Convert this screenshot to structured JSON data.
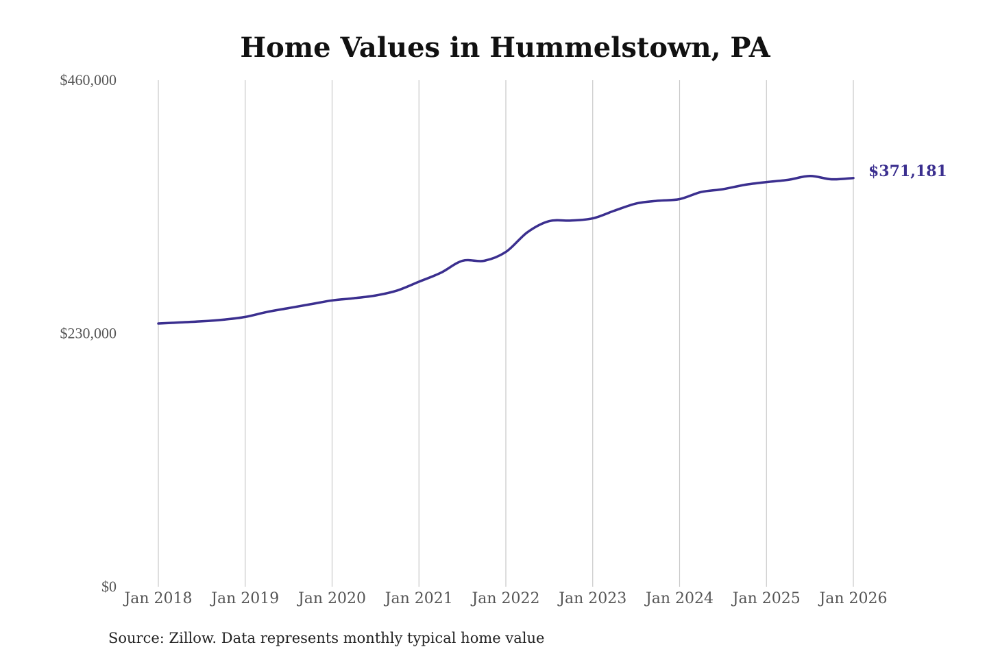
{
  "colors": {
    "series": "#3b2f8f",
    "grid": "#c8c8c8",
    "text": "#555555"
  },
  "source_note": "Source: Zillow. Data represents monthly typical home value",
  "chart_data": {
    "type": "line",
    "title": "Home Values in Hummelstown, PA",
    "xlabel": "",
    "ylabel": "",
    "ylim": [
      0,
      460000
    ],
    "y_ticks": [
      {
        "value": 0,
        "label": "$0"
      },
      {
        "value": 230000,
        "label": "$230,000"
      },
      {
        "value": 460000,
        "label": "$460,000"
      }
    ],
    "x_ticks": [
      {
        "value": "2018-01",
        "label": "Jan 2018"
      },
      {
        "value": "2019-01",
        "label": "Jan 2019"
      },
      {
        "value": "2020-01",
        "label": "Jan 2020"
      },
      {
        "value": "2021-01",
        "label": "Jan 2021"
      },
      {
        "value": "2022-01",
        "label": "Jan 2022"
      },
      {
        "value": "2023-01",
        "label": "Jan 2023"
      },
      {
        "value": "2024-01",
        "label": "Jan 2024"
      },
      {
        "value": "2025-01",
        "label": "Jan 2025"
      },
      {
        "value": "2026-01",
        "label": "Jan 2026"
      }
    ],
    "grid": "vertical",
    "end_label": "$371,181",
    "series": [
      {
        "x": [
          "2018-01",
          "2018-04",
          "2018-07",
          "2018-10",
          "2019-01",
          "2019-04",
          "2019-07",
          "2019-10",
          "2020-01",
          "2020-04",
          "2020-07",
          "2020-10",
          "2021-01",
          "2021-04",
          "2021-07",
          "2021-10",
          "2022-01",
          "2022-04",
          "2022-07",
          "2022-10",
          "2023-01",
          "2023-04",
          "2023-07",
          "2023-10",
          "2024-01",
          "2024-04",
          "2024-07",
          "2024-10",
          "2025-01",
          "2025-04",
          "2025-07",
          "2025-10",
          "2026-01"
        ],
        "values": [
          239000,
          240000,
          241000,
          242500,
          245000,
          249500,
          253000,
          256500,
          260000,
          262000,
          264500,
          269000,
          277000,
          285000,
          296000,
          296000,
          304000,
          322000,
          332000,
          332500,
          334500,
          341500,
          348000,
          350500,
          352000,
          358500,
          361000,
          365000,
          367500,
          369500,
          373000,
          370000,
          371181
        ]
      }
    ]
  }
}
